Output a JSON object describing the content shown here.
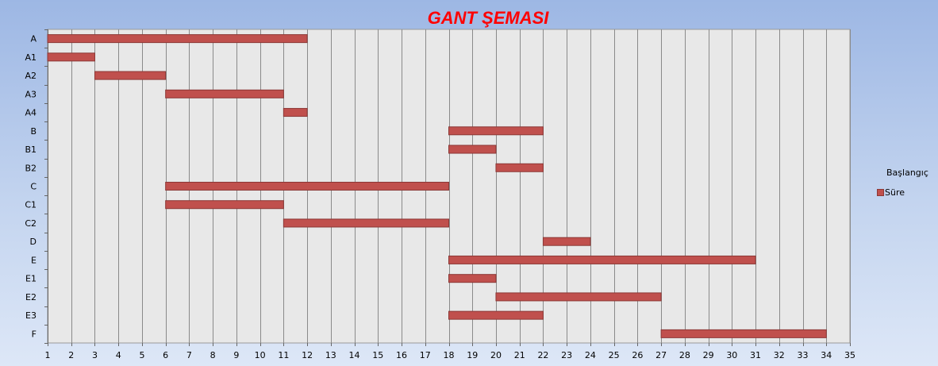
{
  "chart_data": {
    "type": "bar",
    "orientation": "horizontal",
    "stacked": true,
    "title": "GANT ŞEMASI",
    "xlim": [
      1,
      35
    ],
    "x_ticks": [
      "1",
      "2",
      "3",
      "4",
      "5",
      "6",
      "7",
      "8",
      "9",
      "10",
      "11",
      "12",
      "13",
      "14",
      "15",
      "16",
      "17",
      "18",
      "19",
      "20",
      "21",
      "22",
      "23",
      "24",
      "25",
      "26",
      "27",
      "28",
      "29",
      "30",
      "31",
      "32",
      "33",
      "34",
      "35"
    ],
    "categories": [
      "A",
      "A1",
      "A2",
      "A3",
      "A4",
      "B",
      "B1",
      "B2",
      "C",
      "C1",
      "C2",
      "D",
      "E",
      "E1",
      "E2",
      "E3",
      "F"
    ],
    "series": [
      {
        "name": "Başlangıç",
        "values": [
          1,
          1,
          3,
          6,
          11,
          18,
          18,
          20,
          6,
          6,
          11,
          22,
          18,
          18,
          20,
          18,
          27
        ],
        "visible": false
      },
      {
        "name": "Süre",
        "values": [
          11,
          2,
          3,
          5,
          1,
          4,
          2,
          2,
          12,
          5,
          7,
          2,
          13,
          2,
          7,
          4,
          7
        ]
      }
    ],
    "grid": true,
    "legend": "right",
    "colors": {
      "bar": "#c0504d",
      "bar_border": "#8c3836",
      "title": "#ff0000",
      "plot_bg": "#e8e8e8",
      "grid": "#8a8a8a"
    }
  }
}
